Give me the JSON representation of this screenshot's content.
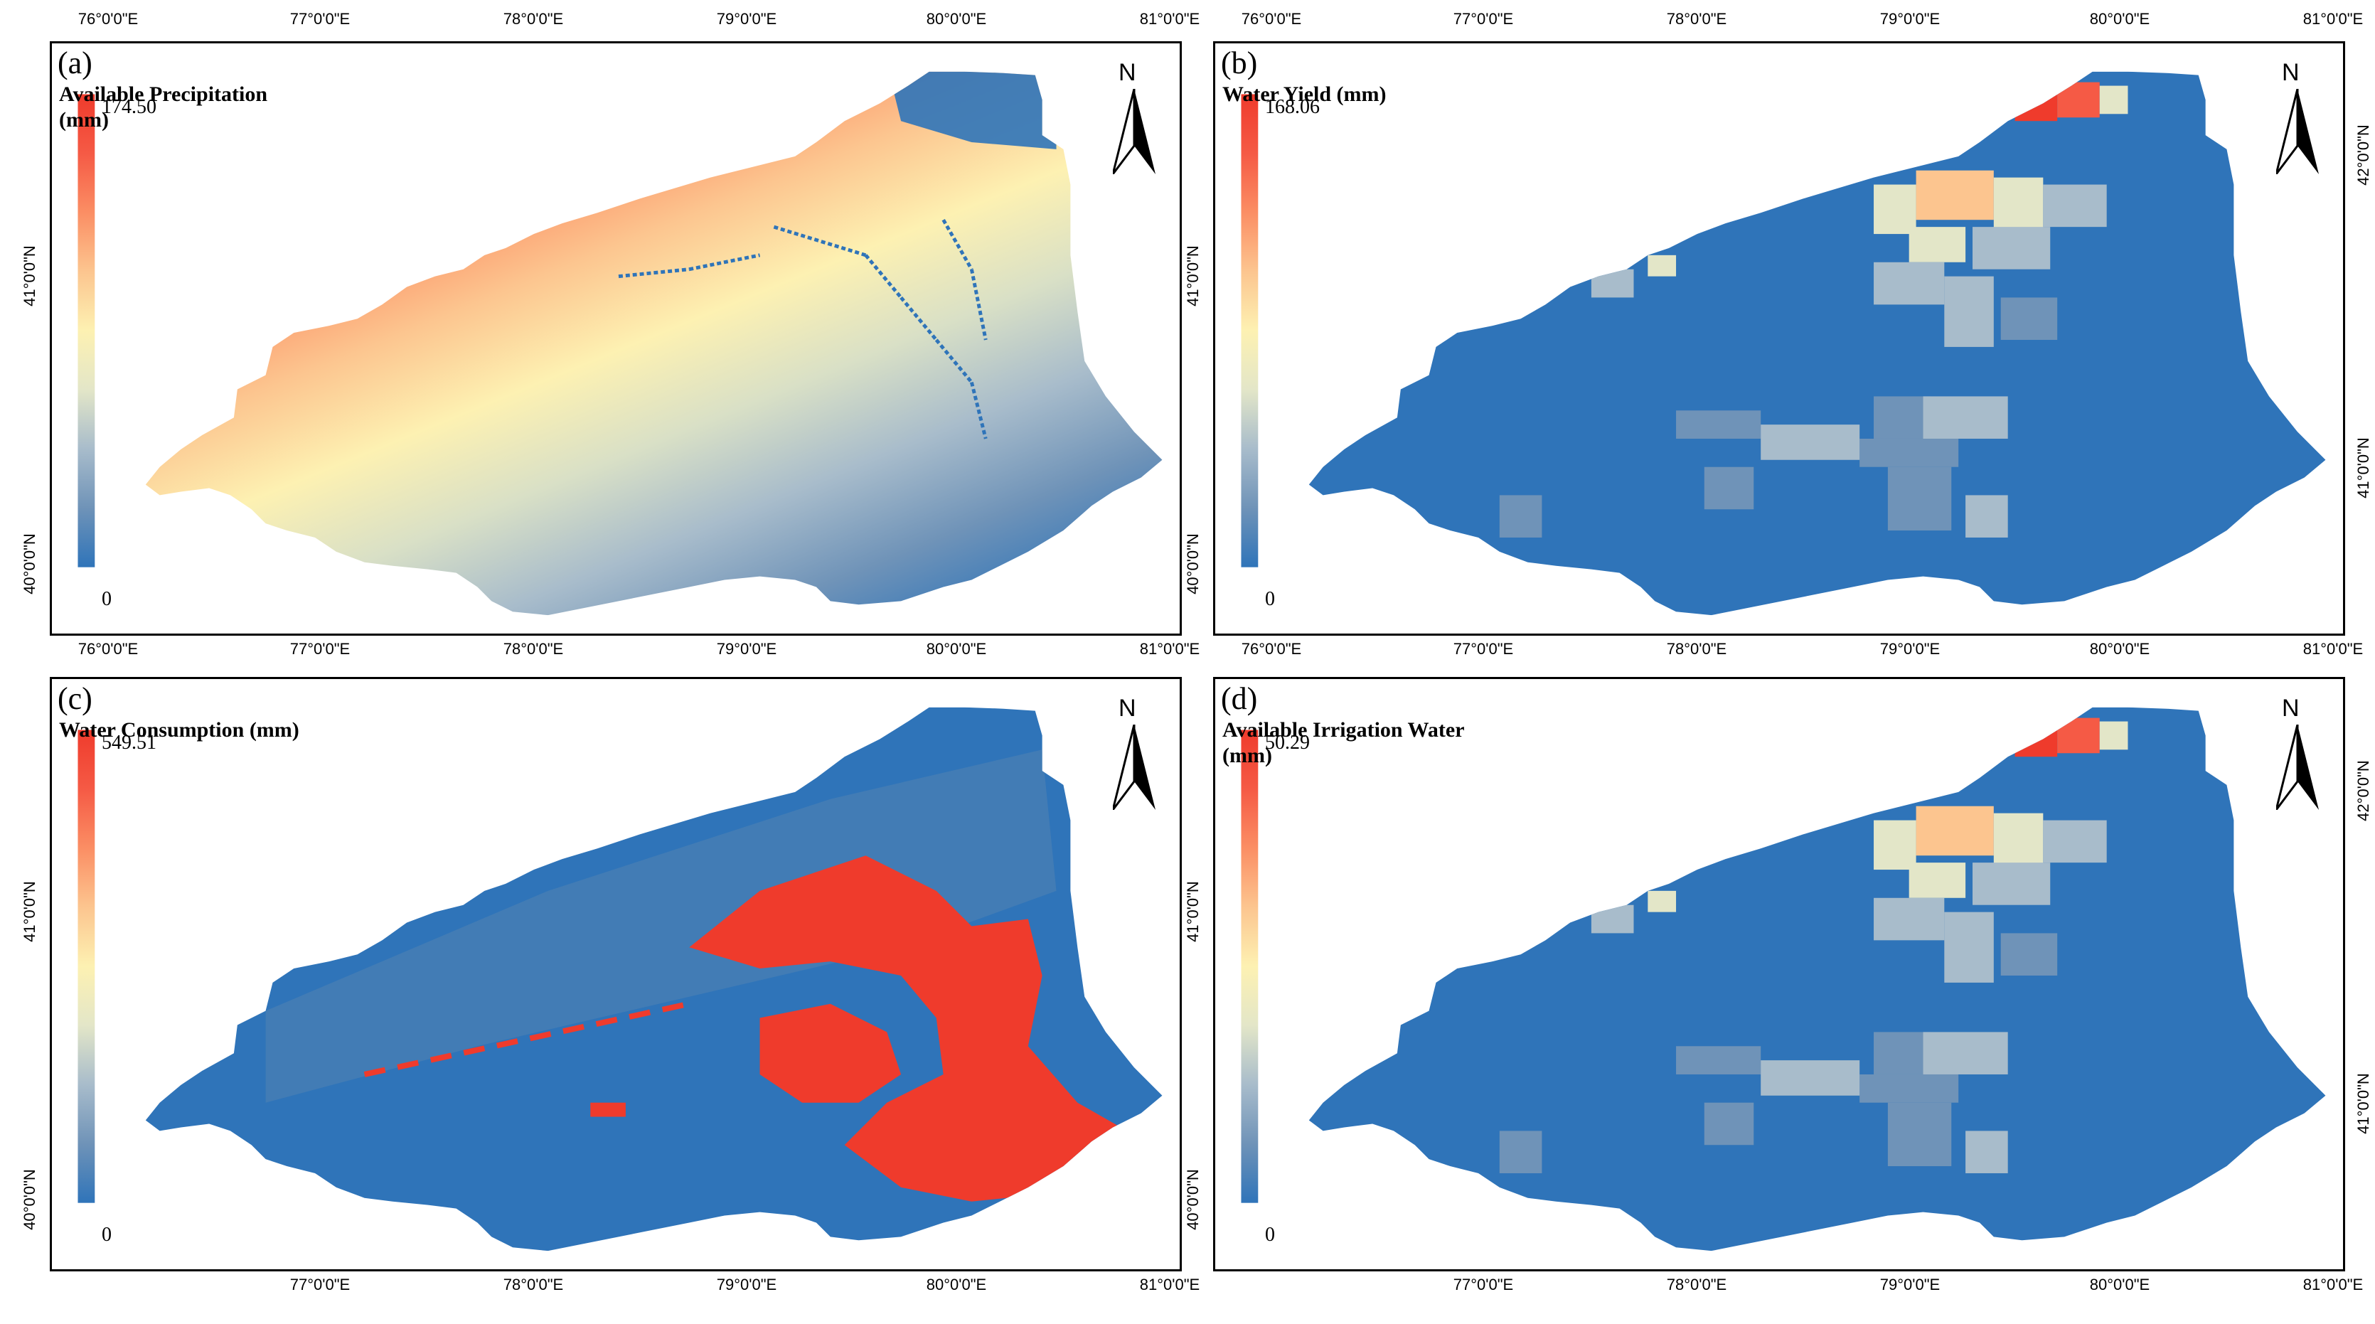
{
  "figure": {
    "colors": {
      "ramp": [
        "#2f74b9",
        "#6f93b8",
        "#a8bccb",
        "#e3e6c8",
        "#fdf1b2",
        "#fcc58f",
        "#fb8e64",
        "#f55a45",
        "#ef3b2c"
      ],
      "low": "#2f74b9",
      "high": "#ef3b2c",
      "frame": "#000000"
    },
    "panels": [
      {
        "id": "a",
        "label": "(a)",
        "title": "Available Precipitation (mm)",
        "legend_max": "174.50",
        "legend_min": "0",
        "north": "N",
        "x_ticks_top": [
          "76°0'0\"E",
          "77°0'0\"E",
          "78°0'0\"E",
          "79°0'0\"E",
          "80°0'0\"E",
          "81°0'0\"E"
        ],
        "x_ticks_bottom": [
          "76°0'0\"E",
          "77°0'0\"E",
          "78°0'0\"E",
          "79°0'0\"E",
          "80°0'0\"E",
          "81°0'0\"E"
        ],
        "y_ticks_left": [
          "41°0'0\"N",
          "40°0'0\"N"
        ],
        "y_ticks_right": [],
        "pattern": "precip"
      },
      {
        "id": "b",
        "label": "(b)",
        "title": "Water Yield (mm)",
        "legend_max": "168.06",
        "legend_min": "0",
        "north": "N",
        "x_ticks_top": [
          "76°0'0\"E",
          "77°0'0\"E",
          "78°0'0\"E",
          "79°0'0\"E",
          "80°0'0\"E",
          "81°0'0\"E"
        ],
        "x_ticks_bottom": [
          "76°0'0\"E",
          "77°0'0\"E",
          "78°0'0\"E",
          "79°0'0\"E",
          "80°0'0\"E",
          "81°0'0\"E"
        ],
        "y_ticks_left": [
          "41°0'0\"N",
          "40°0'0\"N"
        ],
        "y_ticks_right": [
          "42°0'0\"N",
          "41°0'0\"N"
        ],
        "pattern": "patches"
      },
      {
        "id": "c",
        "label": "(c)",
        "title": "Water Consumption (mm)",
        "legend_max": "549.51",
        "legend_min": "0",
        "north": "N",
        "x_ticks_top": [],
        "x_ticks_bottom": [
          "77°0'0\"E",
          "78°0'0\"E",
          "79°0'0\"E",
          "80°0'0\"E",
          "81°0'0\"E"
        ],
        "y_ticks_left": [
          "41°0'0\"N",
          "40°0'0\"N"
        ],
        "y_ticks_right": [],
        "pattern": "consumption"
      },
      {
        "id": "d",
        "label": "(d)",
        "title": "Available  Irrigation Water (mm)",
        "legend_max": "50.29",
        "legend_min": "0",
        "north": "N",
        "x_ticks_top": [],
        "x_ticks_bottom": [
          "77°0'0\"E",
          "78°0'0\"E",
          "79°0'0\"E",
          "80°0'0\"E",
          "81°0'0\"E"
        ],
        "y_ticks_left": [
          "41°0'0\"N",
          "40°0'0\"N"
        ],
        "y_ticks_right": [
          "42°0'0\"N",
          "41°0'0\"N"
        ],
        "pattern": "patches"
      }
    ]
  }
}
